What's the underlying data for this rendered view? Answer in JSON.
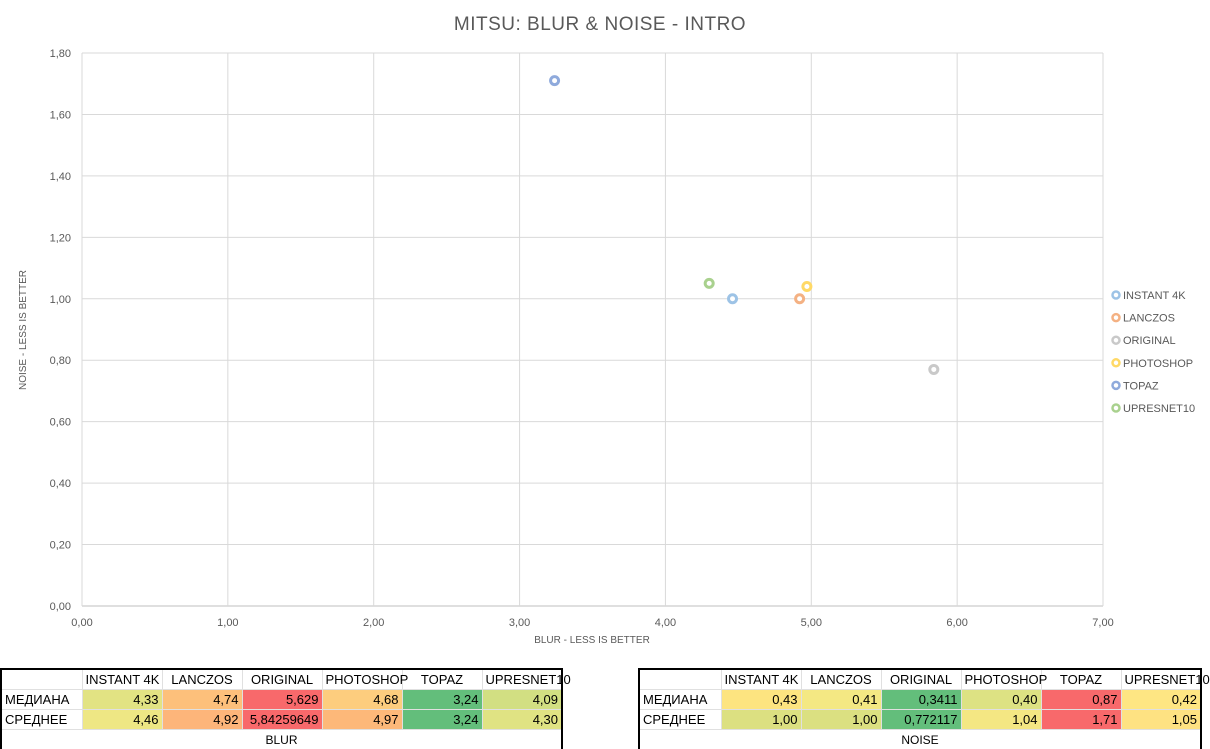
{
  "chart_data": {
    "type": "scatter",
    "title": "MITSU: BLUR & NOISE - INTRO",
    "xlabel": "BLUR - LESS IS BETTER",
    "ylabel": "NOISE - LESS IS BETTER",
    "xlim": [
      0,
      7
    ],
    "ylim": [
      0,
      1.8
    ],
    "x_ticks": [
      "0,00",
      "1,00",
      "2,00",
      "3,00",
      "4,00",
      "5,00",
      "6,00",
      "7,00"
    ],
    "y_ticks": [
      "0,00",
      "0,20",
      "0,40",
      "0,60",
      "0,80",
      "1,00",
      "1,20",
      "1,40",
      "1,60",
      "1,80"
    ],
    "grid": true,
    "legend_position": "right",
    "series": [
      {
        "name": "INSTANT 4K",
        "color": "#9dc3e6",
        "x": 4.46,
        "y": 1.0
      },
      {
        "name": "LANCZOS",
        "color": "#f4b183",
        "x": 4.92,
        "y": 1.0
      },
      {
        "name": "ORIGINAL",
        "color": "#c9c9c9",
        "x": 5.84,
        "y": 0.77
      },
      {
        "name": "PHOTOSHOP",
        "color": "#ffd966",
        "x": 4.97,
        "y": 1.04
      },
      {
        "name": "TOPAZ",
        "color": "#8faadc",
        "x": 3.24,
        "y": 1.71
      },
      {
        "name": "UPRESNET10",
        "color": "#a9d18e",
        "x": 4.3,
        "y": 1.05
      }
    ]
  },
  "blur_table": {
    "caption": "BLUR",
    "headers": [
      "INSTANT 4K",
      "LANCZOS",
      "ORIGINAL",
      "PHOTOSHOP",
      "TOPAZ",
      "UPRESNET10"
    ],
    "rows": [
      {
        "label": "МЕДИАНА",
        "values": [
          "4,33",
          "4,74",
          "5,629",
          "4,68",
          "3,24",
          "4,09"
        ],
        "colors": [
          "#e2e383",
          "#fdc07b",
          "#f8696b",
          "#fdcd7e",
          "#63be7b",
          "#d2df82"
        ]
      },
      {
        "label": "СРЕДНЕЕ",
        "values": [
          "4,46",
          "4,92",
          "5,84259649",
          "4,97",
          "3,24",
          "4,30"
        ],
        "colors": [
          "#eee784",
          "#fdb57a",
          "#f8696b",
          "#fdb879",
          "#63be7b",
          "#e0e383"
        ]
      }
    ]
  },
  "noise_table": {
    "caption": "NOISE",
    "headers": [
      "INSTANT 4K",
      "LANCZOS",
      "ORIGINAL",
      "PHOTOSHOP",
      "TOPAZ",
      "UPRESNET10"
    ],
    "rows": [
      {
        "label": "МЕДИАНА",
        "values": [
          "0,43",
          "0,41",
          "0,3411",
          "0,40",
          "0,87",
          "0,42"
        ],
        "colors": [
          "#fde480",
          "#f4e883",
          "#63be7b",
          "#dde283",
          "#f8696b",
          "#fee683"
        ]
      },
      {
        "label": "СРЕДНЕЕ",
        "values": [
          "1,00",
          "1,00",
          "0,772117",
          "1,04",
          "1,71",
          "1,05"
        ],
        "colors": [
          "#dce081",
          "#dbe081",
          "#63be7b",
          "#f4e783",
          "#f8696b",
          "#fee282"
        ]
      }
    ]
  }
}
